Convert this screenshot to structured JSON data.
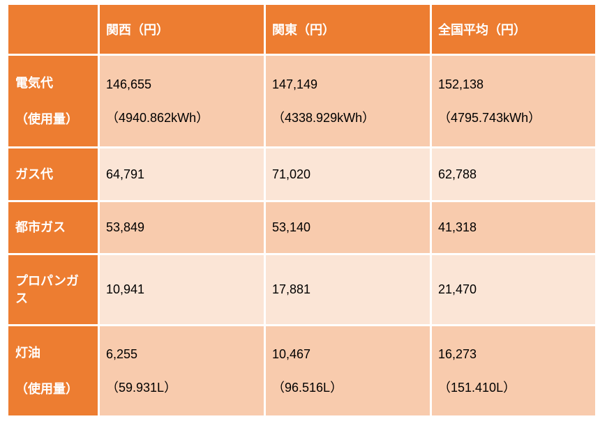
{
  "table": {
    "colors": {
      "accent": "#ED7D31",
      "band_dark": "#F8CBAD",
      "band_light": "#FBE5D6",
      "header_text": "#FFFFFF",
      "cell_text": "#000000",
      "border": "#FFFFFF"
    },
    "headers": {
      "corner": "",
      "kansai": "関西（円）",
      "kanto": "関東（円）",
      "national": "全国平均（円）"
    },
    "rows": [
      {
        "label": "電気代",
        "label2": "（使用量）",
        "kansai": "146,655",
        "kansai2": "（4940.862kWh）",
        "kanto": "147,149",
        "kanto2": "（4338.929kWh）",
        "national": "152,138",
        "national2": "（4795.743kWh）"
      },
      {
        "label": "ガス代",
        "kansai": "64,791",
        "kanto": "71,020",
        "national": "62,788"
      },
      {
        "label": "都市ガス",
        "kansai": "53,849",
        "kanto": "53,140",
        "national": "41,318"
      },
      {
        "label": "プロパンガス",
        "kansai": "10,941",
        "kanto": "17,881",
        "national": "21,470"
      },
      {
        "label": "灯油",
        "label2": "（使用量）",
        "kansai": "6,255",
        "kansai2": "（59.931L）",
        "kanto": "10,467",
        "kanto2": "（96.516L）",
        "national": "16,273",
        "national2": "（151.410L）"
      }
    ]
  },
  "chart_data": {
    "type": "table",
    "title": "",
    "columns": [
      "",
      "関西（円）",
      "関東（円）",
      "全国平均（円）"
    ],
    "rows": [
      [
        "電気代（使用量）",
        "146,655（4940.862kWh）",
        "147,149（4338.929kWh）",
        "152,138（4795.743kWh）"
      ],
      [
        "ガス代",
        "64,791",
        "71,020",
        "62,788"
      ],
      [
        "都市ガス",
        "53,849",
        "53,140",
        "41,318"
      ],
      [
        "プロパンガス",
        "10,941",
        "17,881",
        "21,470"
      ],
      [
        "灯油（使用量）",
        "6,255（59.931L）",
        "10,467（96.516L）",
        "16,273（151.410L）"
      ]
    ]
  }
}
